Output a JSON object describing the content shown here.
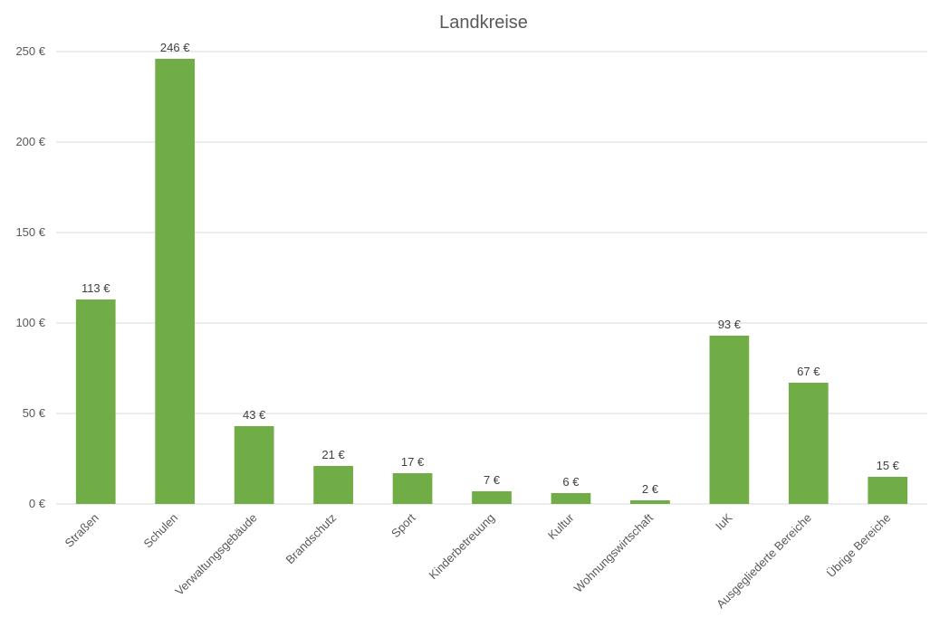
{
  "chart_data": {
    "type": "bar",
    "title": "Landkreise",
    "xlabel": "",
    "ylabel": "",
    "currency_suffix": " €",
    "categories": [
      "Straßen",
      "Schulen",
      "Verwaltungsgebäude",
      "Brandschutz",
      "Sport",
      "Kinderbetreuung",
      "Kultur",
      "Wohnungswirtschaft",
      "IuK",
      "Ausgegliederte Bereiche",
      "Übrige Bereiche"
    ],
    "values": [
      113,
      246,
      43,
      21,
      17,
      7,
      6,
      2,
      93,
      67,
      15
    ],
    "data_labels": [
      "113 €",
      "246 €",
      "43 €",
      "21 €",
      "17 €",
      "7 €",
      "6 €",
      "2 €",
      "93 €",
      "67 €",
      "15 €"
    ],
    "ylim": [
      0,
      250
    ],
    "yticks": [
      0,
      50,
      100,
      150,
      200,
      250
    ],
    "ytick_labels": [
      "0 €",
      "50 €",
      "100 €",
      "150 €",
      "200 €",
      "250 €"
    ],
    "grid": true,
    "legend": "none",
    "bar_color": "#70AD47",
    "grid_color": "#D9D9D9",
    "text_color": "#595959"
  }
}
